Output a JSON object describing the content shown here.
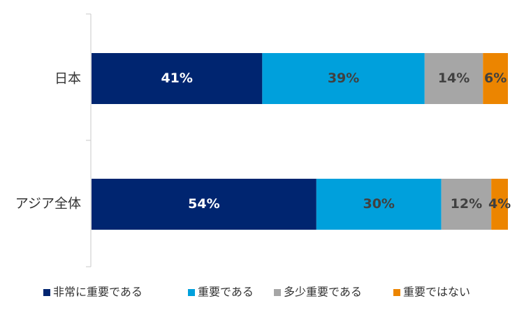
{
  "chart_data": {
    "type": "bar",
    "orientation": "horizontal",
    "stacked": true,
    "percent_scale": true,
    "categories": [
      "日本",
      "アジア全体"
    ],
    "series": [
      {
        "name": "非常に重要である",
        "values": [
          41,
          54
        ],
        "labels": [
          "41%",
          "54%"
        ],
        "color": "#002570",
        "label_color": "#ffffff"
      },
      {
        "name": "重要である",
        "values": [
          39,
          30
        ],
        "labels": [
          "39%",
          "30%"
        ],
        "color": "#00a0dc",
        "label_color": "#404040"
      },
      {
        "name": "多少重要である",
        "values": [
          14,
          12
        ],
        "labels": [
          "14%",
          "12%"
        ],
        "color": "#a6a6a6",
        "label_color": "#404040"
      },
      {
        "name": "重要ではない",
        "values": [
          6,
          4
        ],
        "labels": [
          "6%",
          "4%"
        ],
        "color": "#ec8500",
        "label_color": "#404040"
      }
    ],
    "xlim": [
      0,
      100
    ],
    "grid": false,
    "legend_position": "bottom"
  }
}
